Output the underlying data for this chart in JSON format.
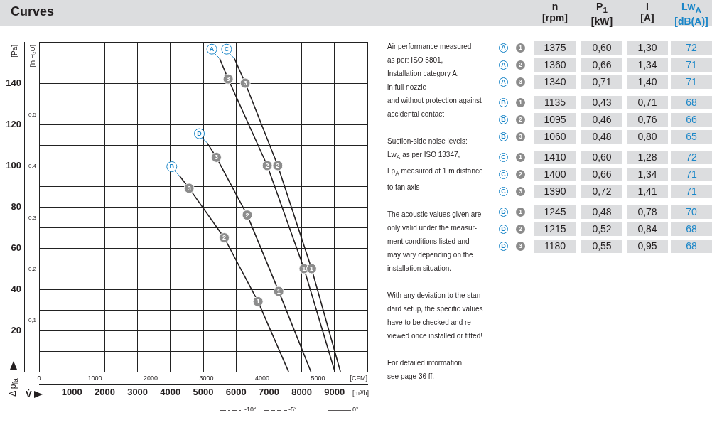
{
  "chart_data": [
    {
      "type": "line",
      "title": "Curves",
      "xlabel": "[m³/h]",
      "x2label": "[CFM]",
      "ylabel": "[Pa]",
      "y2label": "[in H₂O]",
      "xlim": [
        0,
        10000
      ],
      "xticks": [
        1000,
        2000,
        3000,
        4000,
        5000,
        6000,
        7000,
        8000,
        9000,
        {
          "value": 10000,
          "label": null
        }
      ],
      "x2lim": [
        0,
        5886
      ],
      "x2ticks": [
        0,
        1000,
        2000,
        3000,
        4000,
        5000
      ],
      "ylim": [
        0,
        160
      ],
      "yticks": [
        {
          "value": 0,
          "label": null
        },
        {
          "value": 10,
          "label": null
        },
        20,
        {
          "value": 30,
          "label": null
        },
        40,
        {
          "value": 50,
          "label": null
        },
        60,
        {
          "value": 70,
          "label": null
        },
        80,
        {
          "value": 90,
          "label": null
        },
        100,
        {
          "value": 110,
          "label": null
        },
        120,
        {
          "value": 130,
          "label": null
        },
        140,
        {
          "value": 150,
          "label": null
        },
        {
          "value": 160,
          "label": null
        }
      ],
      "y2lim": [
        0,
        0.6424
      ],
      "y2ticks": [
        {
          "value": 0.1,
          "label": "0,1"
        },
        {
          "value": 0.2,
          "label": "0,2"
        },
        {
          "value": 0.3,
          "label": "0,3"
        },
        {
          "value": 0.4,
          "label": "0,4"
        },
        {
          "value": 0.5,
          "label": "0,5"
        }
      ],
      "grid": true,
      "legend": false,
      "line_style": "solid",
      "annotations": [
        "Δ p$_{fa}$",
        "V̇",
        "-10°",
        "-5°",
        "0°"
      ],
      "series": [
        {
          "name": "A",
          "type": "line",
          "color": "#231f20",
          "x": [
            5500,
            5760,
            6950,
            8070,
            9010
          ],
          "values": [
            152,
            142,
            100,
            50,
            0
          ]
        },
        {
          "name": "B",
          "type": "line",
          "color": "#231f20",
          "x": [
            4280,
            4570,
            5640,
            6670,
            7600
          ],
          "values": [
            95,
            89,
            65,
            34,
            0
          ]
        },
        {
          "name": "C",
          "type": "line",
          "color": "#231f20",
          "x": [
            5950,
            6280,
            7270,
            8300,
            9180
          ],
          "values": [
            152,
            140,
            100,
            50,
            0
          ]
        },
        {
          "name": "D",
          "type": "line",
          "color": "#231f20",
          "x": [
            5120,
            5400,
            6340,
            7300,
            8280
          ],
          "values": [
            111,
            104,
            76,
            39,
            0
          ]
        },
        {
          "name": "1",
          "type": "scatter",
          "marker": "circle",
          "color": "#8c8c8c",
          "x": [
            8070,
            6670,
            8300,
            7300
          ],
          "values": [
            50,
            34,
            50,
            39
          ]
        },
        {
          "name": "2",
          "type": "scatter",
          "marker": "circle",
          "color": "#8c8c8c",
          "x": [
            6950,
            5640,
            7270,
            6340
          ],
          "values": [
            100,
            65,
            100,
            76
          ]
        },
        {
          "name": "3",
          "type": "scatter",
          "marker": "circle",
          "color": "#8c8c8c",
          "x": [
            5760,
            4570,
            6280,
            5400
          ],
          "values": [
            142,
            89,
            140,
            104
          ]
        }
      ]
    },
    {
      "type": "other",
      "annotations": [
        "Air performance measured\nas per: ISO 5801,\nInstallation category A,\nin full nozzle\nand without protection against\naccidental contact",
        "Suction-side noise levels:\nLw$_{A}$ as per ISO 13347,\nLp$_{A}$ measured at 1 m distance\nto fan axis",
        "The acoustic values given are\nonly valid under the measur-\nment conditions listed and\nmay vary depending on the\ninstallation situation.",
        "With any deviation to the stan-\ndard setup, the specific values\nhave to be checked and re-\nviewed once installed or fitted!",
        "For detailed information\nsee page 36 ff."
      ]
    },
    {
      "type": "other",
      "categories": [
        "n\n[rpm]",
        "P$_{1}$\n[kW]",
        "I\n[A]",
        "Lw$_{A}$\n[dB(A)]"
      ],
      "y_categories": [
        "A",
        "A",
        "A",
        "B",
        "B",
        "B",
        "C",
        "C",
        "C",
        "D",
        "D",
        "D"
      ],
      "y2_categories": [
        "1",
        "2",
        "3",
        "1",
        "2",
        "3",
        "1",
        "2",
        "3",
        "1",
        "2",
        "3"
      ],
      "cell_labels": [
        [
          "1375",
          "0,60",
          "1,30",
          "72"
        ],
        [
          "1360",
          "0,66",
          "1,34",
          "71"
        ],
        [
          "1340",
          "0,71",
          "1,40",
          "71"
        ],
        [
          "1135",
          "0,43",
          "0,71",
          "68"
        ],
        [
          "1095",
          "0,46",
          "0,76",
          "66"
        ],
        [
          "1060",
          "0,48",
          "0,80",
          "65"
        ],
        [
          "1410",
          "0,60",
          "1,28",
          "72"
        ],
        [
          "1400",
          "0,66",
          "1,34",
          "71"
        ],
        [
          "1390",
          "0,72",
          "1,41",
          "71"
        ],
        [
          "1245",
          "0,48",
          "0,78",
          "70"
        ],
        [
          "1215",
          "0,52",
          "0,84",
          "68"
        ],
        [
          "1180",
          "0,55",
          "0,95",
          "68"
        ]
      ]
    }
  ]
}
